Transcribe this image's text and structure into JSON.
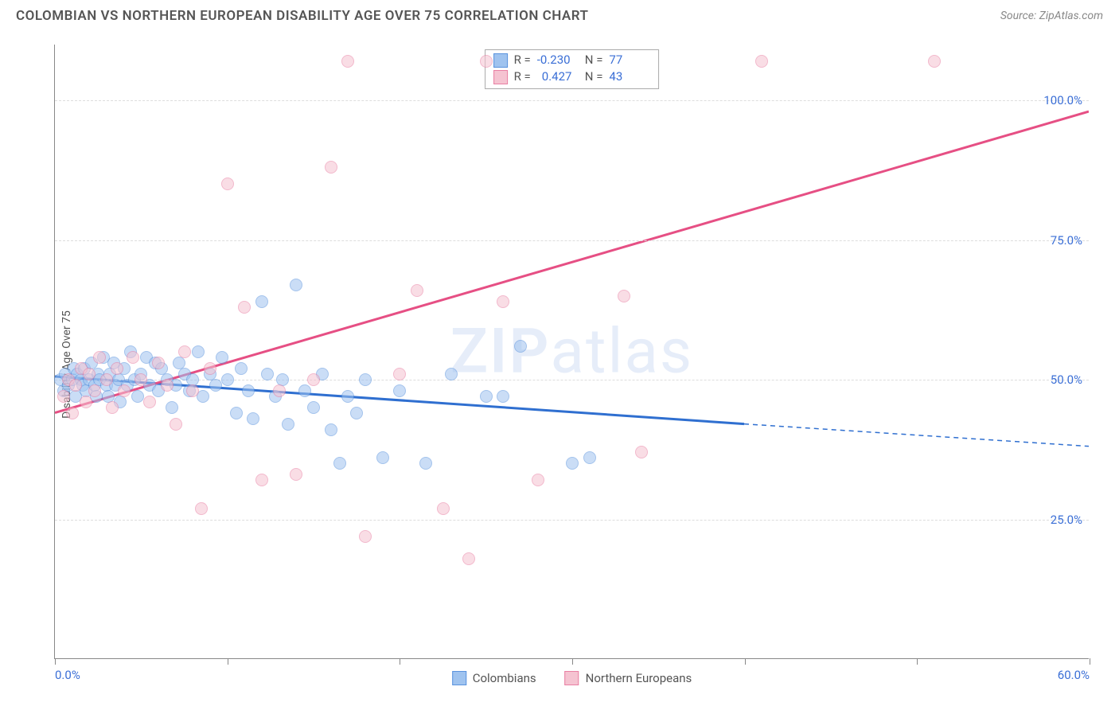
{
  "header": {
    "title": "COLOMBIAN VS NORTHERN EUROPEAN DISABILITY AGE OVER 75 CORRELATION CHART",
    "source": "Source: ZipAtlas.com"
  },
  "ylabel": "Disability Age Over 75",
  "watermark_zip": "ZIP",
  "watermark_atlas": "atlas",
  "chart": {
    "type": "scatter",
    "xlim": [
      0,
      60
    ],
    "ylim": [
      0,
      110
    ],
    "y_ticks": [
      25,
      50,
      75,
      100
    ],
    "y_tick_labels": [
      "25.0%",
      "50.0%",
      "75.0%",
      "100.0%"
    ],
    "x_ticks": [
      0,
      10,
      20,
      30,
      40,
      50,
      60
    ],
    "x_tick_labels_shown": {
      "0": "0.0%",
      "60": "60.0%"
    },
    "background_color": "#ffffff",
    "grid_color": "#dddddd",
    "axis_color": "#888888",
    "tick_label_color": "#3b6fd6",
    "series": [
      {
        "key": "colombians",
        "label": "Colombians",
        "fill_color": "#9fc3ef",
        "stroke_color": "#5a93de",
        "trend_color": "#2f6fd0",
        "trend": {
          "x1": 0,
          "y1": 50.5,
          "x2": 40,
          "y2": 42,
          "dashed_to_x": 60,
          "dashed_to_y": 38
        },
        "stats": {
          "R": "-0.230",
          "N": "77"
        },
        "points": [
          [
            0.3,
            50
          ],
          [
            0.5,
            48
          ],
          [
            0.6,
            51
          ],
          [
            0.8,
            49
          ],
          [
            1.0,
            50
          ],
          [
            1.1,
            52
          ],
          [
            1.2,
            47
          ],
          [
            1.3,
            51
          ],
          [
            1.5,
            50
          ],
          [
            1.6,
            49
          ],
          [
            1.7,
            52
          ],
          [
            1.8,
            48
          ],
          [
            2.0,
            50
          ],
          [
            2.1,
            53
          ],
          [
            2.3,
            49
          ],
          [
            2.4,
            47
          ],
          [
            2.5,
            51
          ],
          [
            2.6,
            50
          ],
          [
            2.8,
            54
          ],
          [
            3.0,
            49
          ],
          [
            3.1,
            47
          ],
          [
            3.2,
            51
          ],
          [
            3.4,
            53
          ],
          [
            3.5,
            49
          ],
          [
            3.7,
            50
          ],
          [
            3.8,
            46
          ],
          [
            4.0,
            52
          ],
          [
            4.2,
            49
          ],
          [
            4.4,
            55
          ],
          [
            4.6,
            50
          ],
          [
            4.8,
            47
          ],
          [
            5.0,
            51
          ],
          [
            5.3,
            54
          ],
          [
            5.5,
            49
          ],
          [
            5.8,
            53
          ],
          [
            6.0,
            48
          ],
          [
            6.2,
            52
          ],
          [
            6.5,
            50
          ],
          [
            6.8,
            45
          ],
          [
            7.0,
            49
          ],
          [
            7.2,
            53
          ],
          [
            7.5,
            51
          ],
          [
            7.8,
            48
          ],
          [
            8.0,
            50
          ],
          [
            8.3,
            55
          ],
          [
            8.6,
            47
          ],
          [
            9.0,
            51
          ],
          [
            9.3,
            49
          ],
          [
            9.7,
            54
          ],
          [
            10.0,
            50
          ],
          [
            10.5,
            44
          ],
          [
            10.8,
            52
          ],
          [
            11.2,
            48
          ],
          [
            11.5,
            43
          ],
          [
            12.0,
            64
          ],
          [
            12.3,
            51
          ],
          [
            12.8,
            47
          ],
          [
            13.2,
            50
          ],
          [
            13.5,
            42
          ],
          [
            14.0,
            67
          ],
          [
            14.5,
            48
          ],
          [
            15.0,
            45
          ],
          [
            15.5,
            51
          ],
          [
            16.0,
            41
          ],
          [
            16.5,
            35
          ],
          [
            17.0,
            47
          ],
          [
            17.5,
            44
          ],
          [
            18.0,
            50
          ],
          [
            19.0,
            36
          ],
          [
            20.0,
            48
          ],
          [
            21.5,
            35
          ],
          [
            23.0,
            51
          ],
          [
            25.0,
            47
          ],
          [
            27.0,
            56
          ],
          [
            30.0,
            35
          ],
          [
            31.0,
            36
          ],
          [
            26.0,
            47
          ]
        ]
      },
      {
        "key": "northern_europeans",
        "label": "Northern Europeans",
        "fill_color": "#f5c3d1",
        "stroke_color": "#e97fa3",
        "trend_color": "#e64f84",
        "trend": {
          "x1": 0,
          "y1": 44,
          "x2": 60,
          "y2": 98
        },
        "stats": {
          "R": "0.427",
          "N": "43"
        },
        "points": [
          [
            0.5,
            47
          ],
          [
            0.8,
            50
          ],
          [
            1.0,
            44
          ],
          [
            1.2,
            49
          ],
          [
            1.5,
            52
          ],
          [
            1.8,
            46
          ],
          [
            2.0,
            51
          ],
          [
            2.3,
            48
          ],
          [
            2.6,
            54
          ],
          [
            3.0,
            50
          ],
          [
            3.3,
            45
          ],
          [
            3.6,
            52
          ],
          [
            4.0,
            48
          ],
          [
            4.5,
            54
          ],
          [
            5.0,
            50
          ],
          [
            5.5,
            46
          ],
          [
            6.0,
            53
          ],
          [
            6.5,
            49
          ],
          [
            7.0,
            42
          ],
          [
            7.5,
            55
          ],
          [
            8.0,
            48
          ],
          [
            8.5,
            27
          ],
          [
            9.0,
            52
          ],
          [
            10.0,
            85
          ],
          [
            11.0,
            63
          ],
          [
            12.0,
            32
          ],
          [
            13.0,
            48
          ],
          [
            14.0,
            33
          ],
          [
            15.0,
            50
          ],
          [
            16.0,
            88
          ],
          [
            17.0,
            107
          ],
          [
            18.0,
            22
          ],
          [
            20.0,
            51
          ],
          [
            21.0,
            66
          ],
          [
            22.5,
            27
          ],
          [
            24.0,
            18
          ],
          [
            25.0,
            107
          ],
          [
            26.0,
            64
          ],
          [
            28.0,
            32
          ],
          [
            33.0,
            65
          ],
          [
            34.0,
            37
          ],
          [
            41.0,
            107
          ],
          [
            51.0,
            107
          ]
        ]
      }
    ]
  },
  "stats_box": {
    "r_label": "R =",
    "n_label": "N ="
  },
  "legend_label_1": "Colombians",
  "legend_label_2": "Northern Europeans"
}
